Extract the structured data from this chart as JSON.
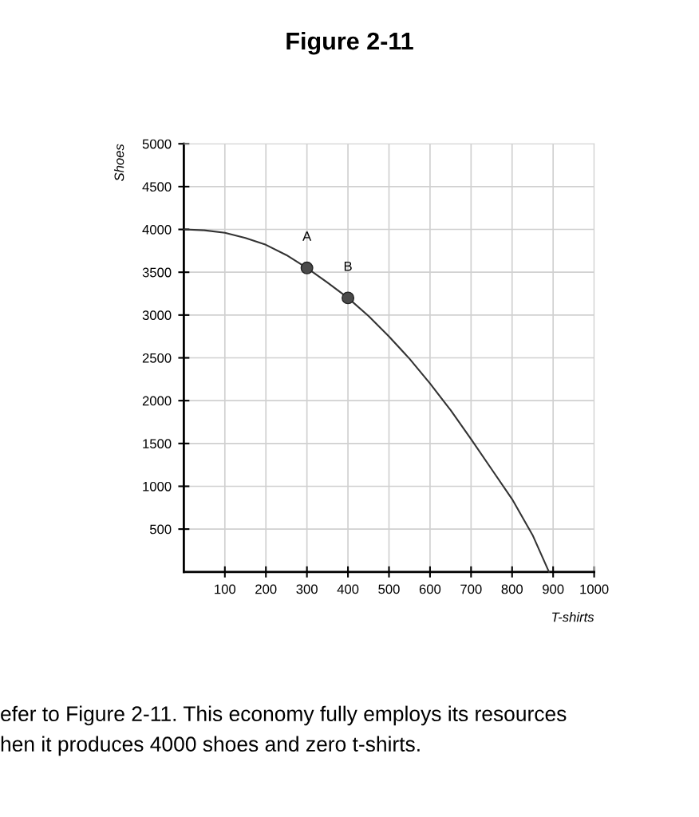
{
  "chart_data": {
    "type": "line",
    "title": "Figure 2-11",
    "xlabel": "T-shirts",
    "ylabel": "Shoes",
    "xlim": [
      0,
      1000
    ],
    "ylim": [
      0,
      5000
    ],
    "xticks": [
      100,
      200,
      300,
      400,
      500,
      600,
      700,
      800,
      900,
      1000
    ],
    "yticks": [
      500,
      1000,
      1500,
      2000,
      2500,
      3000,
      3500,
      4000,
      4500,
      5000
    ],
    "grid": true,
    "series": [
      {
        "color": "#333333",
        "marker": "none",
        "x": [
          0,
          50,
          100,
          150,
          200,
          250,
          300,
          350,
          400,
          450,
          500,
          550,
          600,
          650,
          700,
          750,
          800,
          850,
          890
        ],
        "values": [
          4000,
          3990,
          3960,
          3900,
          3820,
          3700,
          3550,
          3380,
          3200,
          2990,
          2750,
          2490,
          2200,
          1890,
          1550,
          1200,
          850,
          430,
          0
        ]
      },
      {
        "type": "scatter",
        "color": "#4a4a4a",
        "marker": "circle",
        "x": [
          300,
          400
        ],
        "values": [
          3550,
          3200
        ]
      }
    ],
    "annotations": [
      {
        "text": "A",
        "x": 300,
        "y": 3550
      },
      {
        "text": "B",
        "x": 400,
        "y": 3200
      },
      "efer to Figure 2-11. This economy fully employs its resources\nhen it produces 4000 shoes and zero t-shirts."
    ]
  }
}
